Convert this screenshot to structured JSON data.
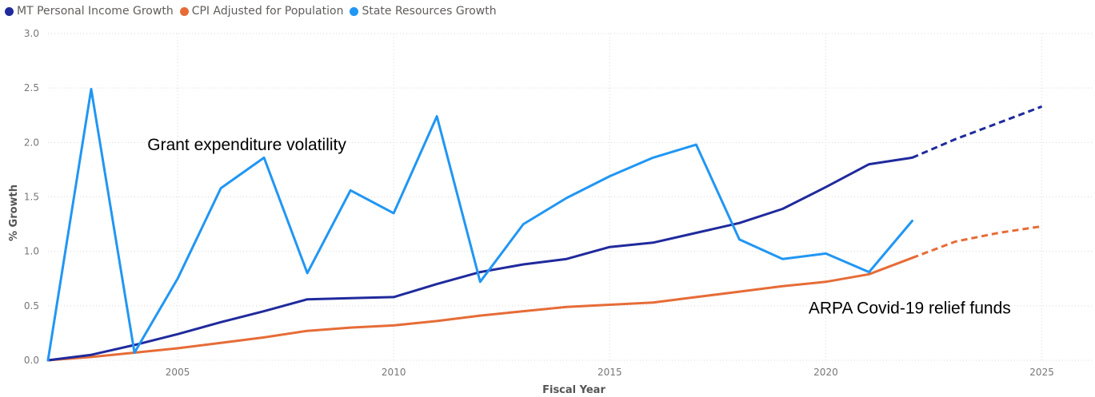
{
  "chart_data": {
    "type": "line",
    "title": "",
    "xlabel": "Fiscal Year",
    "ylabel": "% Growth",
    "xlim": [
      2002,
      2025.6
    ],
    "ylim": [
      0,
      3.0
    ],
    "x_ticks": [
      2005,
      2010,
      2015,
      2020,
      2025
    ],
    "y_ticks": [
      0.0,
      0.5,
      1.0,
      1.5,
      2.0,
      2.5,
      3.0
    ],
    "grid": true,
    "legend_position": "top-left",
    "series": [
      {
        "name": "MT Personal Income Growth",
        "color": "#1f2a9c",
        "x": [
          2002,
          2003,
          2004,
          2005,
          2006,
          2007,
          2008,
          2009,
          2010,
          2011,
          2012,
          2013,
          2014,
          2015,
          2016,
          2017,
          2018,
          2019,
          2020,
          2021,
          2022
        ],
        "values": [
          0.0,
          0.05,
          0.14,
          0.24,
          0.35,
          0.45,
          0.56,
          0.57,
          0.58,
          0.7,
          0.81,
          0.88,
          0.93,
          1.04,
          1.08,
          1.17,
          1.26,
          1.39,
          1.59,
          1.8,
          1.86
        ],
        "projection": {
          "x": [
            2022,
            2023,
            2024,
            2025
          ],
          "values": [
            1.86,
            2.03,
            2.18,
            2.33
          ]
        }
      },
      {
        "name": "CPI Adjusted for Population",
        "color": "#e66c37",
        "x": [
          2002,
          2003,
          2004,
          2005,
          2006,
          2007,
          2008,
          2009,
          2010,
          2011,
          2012,
          2013,
          2014,
          2015,
          2016,
          2017,
          2018,
          2019,
          2020,
          2021,
          2022
        ],
        "values": [
          0.0,
          0.03,
          0.07,
          0.11,
          0.16,
          0.21,
          0.27,
          0.3,
          0.32,
          0.36,
          0.41,
          0.45,
          0.49,
          0.51,
          0.53,
          0.58,
          0.63,
          0.68,
          0.72,
          0.79,
          0.94
        ],
        "projection": {
          "x": [
            2022,
            2023,
            2024,
            2025
          ],
          "values": [
            0.94,
            1.09,
            1.17,
            1.23
          ]
        }
      },
      {
        "name": "State Resources Growth",
        "color": "#2196f3",
        "x": [
          2002,
          2003,
          2004,
          2005,
          2006,
          2007,
          2008,
          2009,
          2010,
          2011,
          2012,
          2013,
          2014,
          2015,
          2016,
          2017,
          2018,
          2019,
          2020,
          2021,
          2022
        ],
        "values": [
          0.0,
          2.49,
          0.07,
          0.75,
          1.58,
          1.86,
          0.8,
          1.56,
          1.35,
          2.24,
          0.72,
          1.25,
          1.49,
          1.69,
          1.86,
          1.98,
          1.11,
          0.93,
          0.98,
          0.81,
          1.28
        ]
      }
    ],
    "annotations": [
      {
        "text": "Grant expenditure volatility",
        "x": 2004.3,
        "y": 1.93
      },
      {
        "text": "ARPA Covid-19 relief funds",
        "x": 2019.6,
        "y": 0.43
      }
    ]
  }
}
